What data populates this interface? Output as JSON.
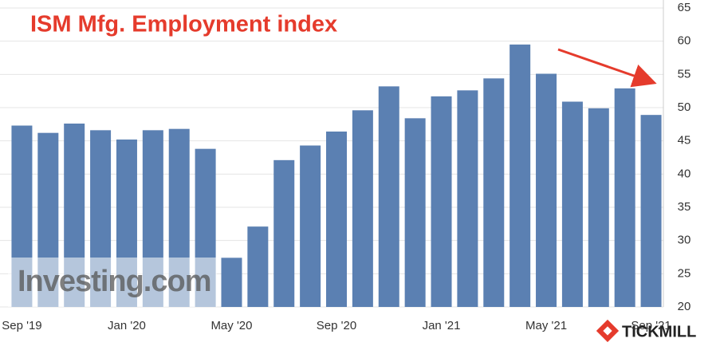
{
  "chart_data": {
    "type": "bar",
    "title": "ISM Mfg. Employment index",
    "categories": [
      "Sep '19",
      null,
      null,
      null,
      "Jan '20",
      null,
      null,
      null,
      "May '20",
      null,
      null,
      null,
      "Sep '20",
      null,
      null,
      null,
      "Jan '21",
      null,
      null,
      null,
      "May '21",
      null,
      null,
      null,
      "Sep '21"
    ],
    "values": [
      47.3,
      46.2,
      47.6,
      46.6,
      45.2,
      46.6,
      46.8,
      43.8,
      27.4,
      32.1,
      42.1,
      44.3,
      46.4,
      49.6,
      53.2,
      48.4,
      51.7,
      52.6,
      54.4,
      59.5,
      55.1,
      50.9,
      49.9,
      52.9,
      48.9
    ],
    "color": "#5b80b2",
    "ylim": [
      20,
      65
    ],
    "yticks": [
      20,
      25,
      30,
      35,
      40,
      45,
      50,
      55,
      60,
      65
    ],
    "grid": true,
    "annotations": [
      "Investing.com",
      "TICKMILL"
    ]
  }
}
